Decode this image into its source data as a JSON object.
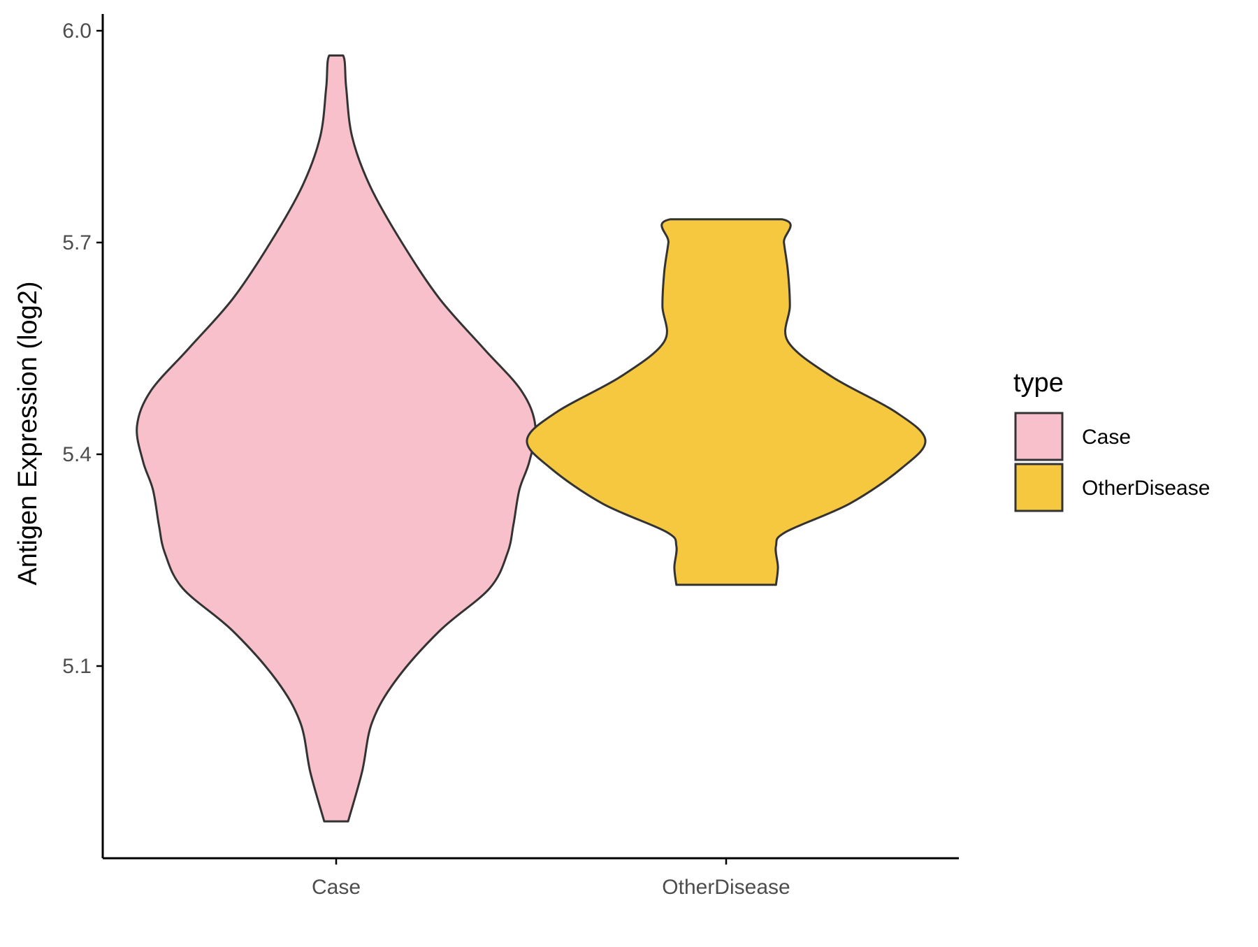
{
  "chart_data": {
    "type": "violin",
    "title": "",
    "xlabel": "",
    "ylabel": "Antigen Expression (log2)",
    "ylim": [
      4.83,
      6.02
    ],
    "y_ticks": [
      5.1,
      5.4,
      5.7,
      6.0
    ],
    "y_tick_labels": [
      "5.1",
      "5.4",
      "5.7",
      "6.0"
    ],
    "categories": [
      "Case",
      "OtherDisease"
    ],
    "legend": {
      "title": "type",
      "placement": "right",
      "entries": [
        "Case",
        "OtherDisease"
      ]
    },
    "grid": false,
    "series": [
      {
        "name": "Case",
        "color": "#F7C0CB",
        "min": 4.88,
        "max": 5.965,
        "density_profile": [
          [
            4.88,
            0.06
          ],
          [
            4.95,
            0.13
          ],
          [
            5.02,
            0.18
          ],
          [
            5.08,
            0.3
          ],
          [
            5.15,
            0.52
          ],
          [
            5.21,
            0.77
          ],
          [
            5.26,
            0.86
          ],
          [
            5.3,
            0.89
          ],
          [
            5.35,
            0.92
          ],
          [
            5.39,
            0.97
          ],
          [
            5.44,
            1.0
          ],
          [
            5.49,
            0.93
          ],
          [
            5.55,
            0.74
          ],
          [
            5.62,
            0.52
          ],
          [
            5.7,
            0.33
          ],
          [
            5.78,
            0.17
          ],
          [
            5.85,
            0.08
          ],
          [
            5.92,
            0.05
          ],
          [
            5.965,
            0.035
          ]
        ]
      },
      {
        "name": "OtherDisease",
        "color": "#F5C840",
        "min": 5.215,
        "max": 5.733,
        "density_profile": [
          [
            5.215,
            0.25
          ],
          [
            5.24,
            0.26
          ],
          [
            5.27,
            0.25
          ],
          [
            5.29,
            0.3
          ],
          [
            5.33,
            0.62
          ],
          [
            5.38,
            0.88
          ],
          [
            5.42,
            1.0
          ],
          [
            5.46,
            0.85
          ],
          [
            5.51,
            0.53
          ],
          [
            5.56,
            0.31
          ],
          [
            5.61,
            0.32
          ],
          [
            5.66,
            0.31
          ],
          [
            5.7,
            0.29
          ],
          [
            5.733,
            0.28
          ]
        ]
      }
    ]
  }
}
